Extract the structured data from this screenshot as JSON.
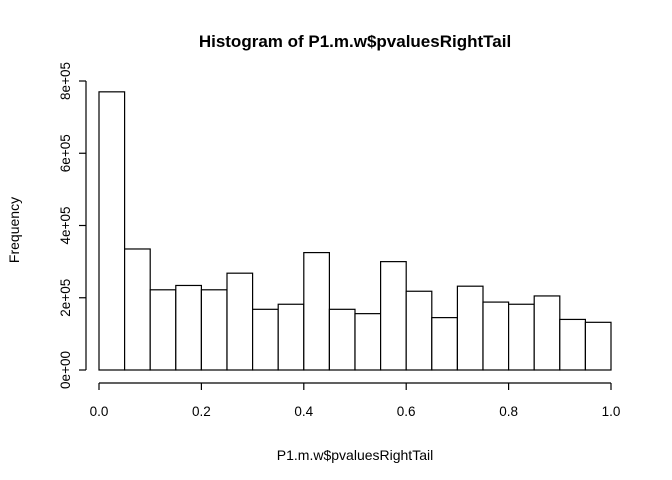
{
  "chart_data": {
    "type": "bar",
    "title": "Histogram of P1.m.w$pvaluesRightTail",
    "xlabel": "P1.m.w$pvaluesRightTail",
    "ylabel": "Frequency",
    "bins": [
      {
        "x0": 0.0,
        "x1": 0.05,
        "count": 770000
      },
      {
        "x0": 0.05,
        "x1": 0.1,
        "count": 335000
      },
      {
        "x0": 0.1,
        "x1": 0.15,
        "count": 222000
      },
      {
        "x0": 0.15,
        "x1": 0.2,
        "count": 234000
      },
      {
        "x0": 0.2,
        "x1": 0.25,
        "count": 222000
      },
      {
        "x0": 0.25,
        "x1": 0.3,
        "count": 268000
      },
      {
        "x0": 0.3,
        "x1": 0.35,
        "count": 168000
      },
      {
        "x0": 0.35,
        "x1": 0.4,
        "count": 182000
      },
      {
        "x0": 0.4,
        "x1": 0.45,
        "count": 325000
      },
      {
        "x0": 0.45,
        "x1": 0.5,
        "count": 168000
      },
      {
        "x0": 0.5,
        "x1": 0.55,
        "count": 156000
      },
      {
        "x0": 0.55,
        "x1": 0.6,
        "count": 300000
      },
      {
        "x0": 0.6,
        "x1": 0.65,
        "count": 218000
      },
      {
        "x0": 0.65,
        "x1": 0.7,
        "count": 145000
      },
      {
        "x0": 0.7,
        "x1": 0.75,
        "count": 232000
      },
      {
        "x0": 0.75,
        "x1": 0.8,
        "count": 188000
      },
      {
        "x0": 0.8,
        "x1": 0.85,
        "count": 182000
      },
      {
        "x0": 0.85,
        "x1": 0.9,
        "count": 205000
      },
      {
        "x0": 0.9,
        "x1": 0.95,
        "count": 140000
      },
      {
        "x0": 0.95,
        "x1": 1.0,
        "count": 132000
      }
    ],
    "xlim": [
      0,
      1
    ],
    "ylim": [
      0,
      800000
    ],
    "xticks": [
      0.0,
      0.2,
      0.4,
      0.6,
      0.8,
      1.0
    ],
    "xtick_labels": [
      "0.0",
      "0.2",
      "0.4",
      "0.6",
      "0.8",
      "1.0"
    ],
    "yticks": [
      0,
      200000,
      400000,
      600000,
      800000
    ],
    "ytick_labels": [
      "0e+00",
      "2e+05",
      "4e+05",
      "6e+05",
      "8e+05"
    ],
    "grid": false,
    "legend": false,
    "colors": {
      "bar_fill": "#ffffff",
      "bar_stroke": "#000000"
    }
  }
}
